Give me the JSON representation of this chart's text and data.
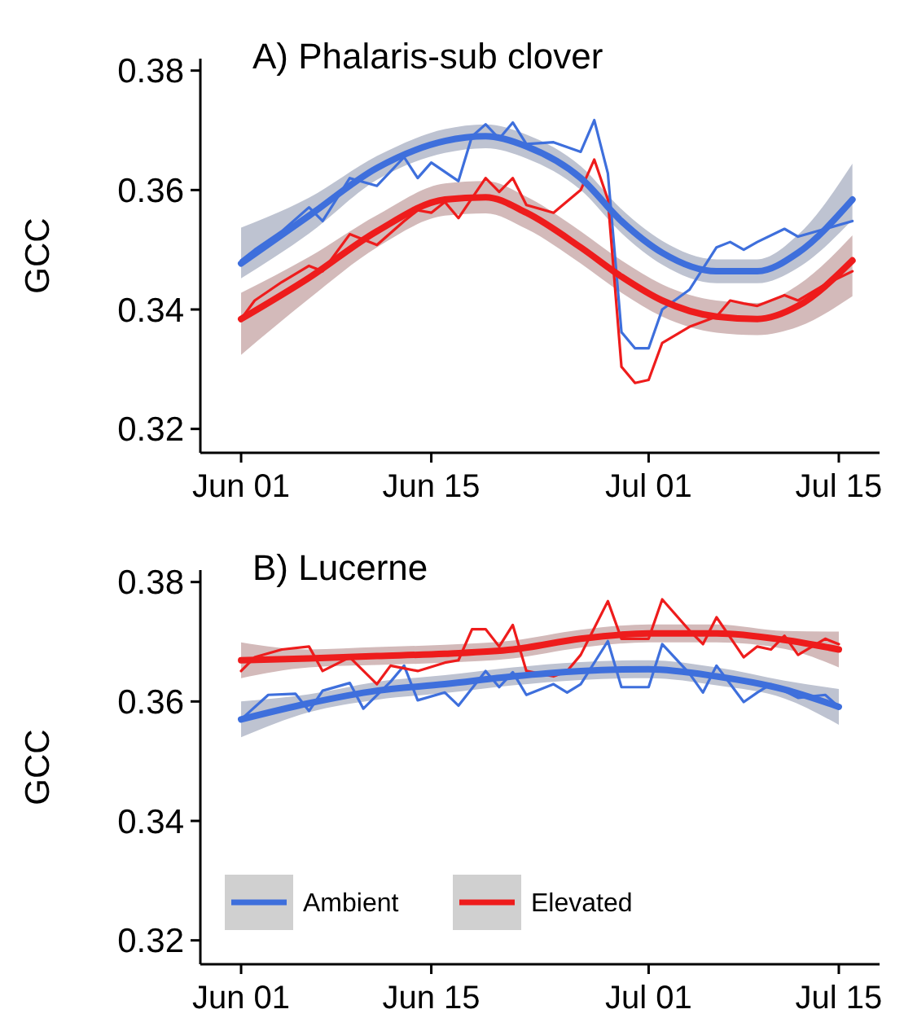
{
  "chart_data": [
    {
      "type": "line",
      "title": "A) Phalaris-sub clover",
      "ylabel": "GCC",
      "xlim": [
        "--05-29",
        "--07-18"
      ],
      "ylim": [
        0.316,
        0.382
      ],
      "yticks": [
        0.32,
        0.34,
        0.36,
        0.38
      ],
      "xticks": [
        {
          "value": "--06-01",
          "label": "Jun 01"
        },
        {
          "value": "--06-15",
          "label": "Jun 15"
        },
        {
          "value": "--07-01",
          "label": "Jul 01"
        },
        {
          "value": "--07-15",
          "label": "Jul 15"
        }
      ],
      "legend": false,
      "series": [
        {
          "color": "#3e6fdc",
          "x": [
            "--06-01",
            "--06-02",
            "--06-04",
            "--06-06",
            "--06-07",
            "--06-09",
            "--06-11",
            "--06-13",
            "--06-14",
            "--06-15",
            "--06-17",
            "--06-18",
            "--06-19",
            "--06-20",
            "--06-21",
            "--06-22",
            "--06-24",
            "--06-26",
            "--06-27",
            "--06-28",
            "--06-29",
            "--06-30",
            "--07-01",
            "--07-02",
            "--07-04",
            "--07-06",
            "--07-07",
            "--07-08",
            "--07-09",
            "--07-11",
            "--07-12",
            "--07-14",
            "--07-16"
          ],
          "values": [
            0.3482,
            0.35,
            0.3531,
            0.3571,
            0.3548,
            0.362,
            0.3607,
            0.3655,
            0.362,
            0.3646,
            0.3615,
            0.369,
            0.371,
            0.3686,
            0.3713,
            0.3677,
            0.368,
            0.3664,
            0.3717,
            0.3628,
            0.3362,
            0.3335,
            0.3335,
            0.34,
            0.3433,
            0.3504,
            0.3513,
            0.35,
            0.3513,
            0.3535,
            0.3522,
            0.3535,
            0.3548
          ]
        },
        {
          "color": "#ee1c1c",
          "x": [
            "--06-01",
            "--06-02",
            "--06-04",
            "--06-06",
            "--06-07",
            "--06-09",
            "--06-11",
            "--06-13",
            "--06-14",
            "--06-15",
            "--06-16",
            "--06-17",
            "--06-19",
            "--06-20",
            "--06-21",
            "--06-22",
            "--06-24",
            "--06-26",
            "--06-27",
            "--06-28",
            "--06-29",
            "--06-30",
            "--07-01",
            "--07-02",
            "--07-04",
            "--07-06",
            "--07-07",
            "--07-08",
            "--07-09",
            "--07-11",
            "--07-12",
            "--07-14",
            "--07-16"
          ],
          "values": [
            0.3384,
            0.3415,
            0.3446,
            0.3473,
            0.3464,
            0.3526,
            0.3508,
            0.3548,
            0.3566,
            0.3562,
            0.358,
            0.3553,
            0.362,
            0.3597,
            0.362,
            0.3575,
            0.3562,
            0.36,
            0.3651,
            0.3584,
            0.3304,
            0.3277,
            0.3282,
            0.3344,
            0.3371,
            0.3388,
            0.3415,
            0.341,
            0.3406,
            0.3424,
            0.3415,
            0.3442,
            0.3464
          ]
        },
        {
          "color": "#3e6fdc",
          "x": [
            "--06-01",
            "--06-06",
            "--06-11",
            "--06-16",
            "--06-19",
            "--06-22",
            "--06-26",
            "--06-29",
            "--07-02",
            "--07-06",
            "--07-09",
            "--07-12",
            "--07-16"
          ],
          "values": [
            0.3477,
            0.3557,
            0.3637,
            0.3682,
            0.369,
            0.3673,
            0.362,
            0.3548,
            0.3495,
            0.3464,
            0.3464,
            0.3495,
            0.3584
          ],
          "lower": [
            0.3452,
            0.3527,
            0.3617,
            0.3662,
            0.367,
            0.3653,
            0.36,
            0.3528,
            0.3475,
            0.3444,
            0.3444,
            0.347,
            0.355
          ],
          "upper": [
            0.3537,
            0.3587,
            0.3657,
            0.3702,
            0.371,
            0.3693,
            0.364,
            0.3568,
            0.3515,
            0.3484,
            0.3484,
            0.3525,
            0.3644
          ]
        },
        {
          "color": "#ee1c1c",
          "x": [
            "--06-01",
            "--06-06",
            "--06-11",
            "--06-16",
            "--06-19",
            "--06-22",
            "--06-26",
            "--06-29",
            "--07-02",
            "--07-06",
            "--07-09",
            "--07-12",
            "--07-16"
          ],
          "values": [
            0.3384,
            0.3453,
            0.3531,
            0.3584,
            0.3588,
            0.3562,
            0.3504,
            0.3455,
            0.3415,
            0.3388,
            0.3384,
            0.3406,
            0.3482
          ],
          "lower": [
            0.3324,
            0.3418,
            0.3504,
            0.3557,
            0.3561,
            0.3535,
            0.3477,
            0.3428,
            0.3388,
            0.3361,
            0.3357,
            0.3371,
            0.3422
          ],
          "upper": [
            0.3428,
            0.3488,
            0.3558,
            0.3611,
            0.3615,
            0.3589,
            0.3531,
            0.3482,
            0.3442,
            0.3415,
            0.3411,
            0.3441,
            0.3524
          ]
        }
      ]
    },
    {
      "type": "line",
      "title": "B) Lucerne",
      "ylabel": "GCC",
      "xlim": [
        "--05-29",
        "--07-18"
      ],
      "ylim": [
        0.316,
        0.382
      ],
      "yticks": [
        0.32,
        0.34,
        0.36,
        0.38
      ],
      "xticks": [
        {
          "value": "--06-01",
          "label": "Jun 01"
        },
        {
          "value": "--06-15",
          "label": "Jun 15"
        },
        {
          "value": "--07-01",
          "label": "Jul 01"
        },
        {
          "value": "--07-15",
          "label": "Jul 15"
        }
      ],
      "legend": "bottom left",
      "series": [
        {
          "color": "#3e6fdc",
          "x": [
            "--06-01",
            "--06-03",
            "--06-05",
            "--06-06",
            "--06-07",
            "--06-09",
            "--06-10",
            "--06-12",
            "--06-13",
            "--06-14",
            "--06-16",
            "--06-17",
            "--06-19",
            "--06-20",
            "--06-21",
            "--06-22",
            "--06-24",
            "--06-25",
            "--06-26",
            "--06-28",
            "--06-29",
            "--07-01",
            "--07-02",
            "--07-04",
            "--07-05",
            "--07-06",
            "--07-08",
            "--07-09",
            "--07-10",
            "--07-12",
            "--07-14",
            "--07-15"
          ],
          "values": [
            0.357,
            0.3611,
            0.3613,
            0.3584,
            0.3618,
            0.3631,
            0.3588,
            0.3633,
            0.366,
            0.3602,
            0.3615,
            0.3593,
            0.3651,
            0.3624,
            0.3649,
            0.3611,
            0.3629,
            0.3615,
            0.3629,
            0.3701,
            0.3624,
            0.3624,
            0.3696,
            0.3647,
            0.3615,
            0.366,
            0.3599,
            0.3615,
            0.3629,
            0.3606,
            0.3611,
            0.3591
          ]
        },
        {
          "color": "#ee1c1c",
          "x": [
            "--06-01",
            "--06-02",
            "--06-04",
            "--06-06",
            "--06-07",
            "--06-09",
            "--06-11",
            "--06-12",
            "--06-14",
            "--06-16",
            "--06-17",
            "--06-18",
            "--06-19",
            "--06-20",
            "--06-21",
            "--06-22",
            "--06-24",
            "--06-25",
            "--06-26",
            "--06-28",
            "--06-29",
            "--07-01",
            "--07-02",
            "--07-04",
            "--07-05",
            "--07-06",
            "--07-08",
            "--07-09",
            "--07-10",
            "--07-11",
            "--07-12",
            "--07-14",
            "--07-15"
          ],
          "values": [
            0.3651,
            0.3674,
            0.3687,
            0.3692,
            0.3651,
            0.3674,
            0.3629,
            0.366,
            0.3651,
            0.3665,
            0.3669,
            0.3721,
            0.3721,
            0.3692,
            0.3728,
            0.3651,
            0.3642,
            0.3651,
            0.3678,
            0.3768,
            0.3705,
            0.3705,
            0.3771,
            0.3719,
            0.3696,
            0.3741,
            0.3674,
            0.3692,
            0.3687,
            0.371,
            0.3678,
            0.3705,
            0.3696
          ]
        },
        {
          "name": "Ambient",
          "color": "#3e6fdc",
          "x": [
            "--06-01",
            "--06-06",
            "--06-11",
            "--06-16",
            "--06-21",
            "--06-26",
            "--07-01",
            "--07-06",
            "--07-11",
            "--07-15"
          ],
          "values": [
            0.357,
            0.3597,
            0.3618,
            0.3629,
            0.3642,
            0.3651,
            0.3654,
            0.3642,
            0.362,
            0.3591
          ],
          "lower": [
            0.354,
            0.3582,
            0.3603,
            0.3614,
            0.3627,
            0.3636,
            0.3639,
            0.3627,
            0.3605,
            0.3561
          ],
          "upper": [
            0.36,
            0.3612,
            0.3633,
            0.3644,
            0.3657,
            0.3666,
            0.3669,
            0.3657,
            0.3635,
            0.3621
          ]
        },
        {
          "name": "Elevated",
          "color": "#ee1c1c",
          "x": [
            "--06-01",
            "--06-06",
            "--06-11",
            "--06-16",
            "--06-21",
            "--06-26",
            "--07-01",
            "--07-06",
            "--07-11",
            "--07-15"
          ],
          "values": [
            0.3669,
            0.3672,
            0.3676,
            0.368,
            0.3687,
            0.3705,
            0.3714,
            0.3714,
            0.3703,
            0.3687
          ],
          "lower": [
            0.3639,
            0.3657,
            0.3661,
            0.3665,
            0.3672,
            0.369,
            0.3699,
            0.3699,
            0.3688,
            0.3657
          ],
          "upper": [
            0.3699,
            0.3687,
            0.3691,
            0.3695,
            0.3702,
            0.372,
            0.3729,
            0.3729,
            0.3718,
            0.3717
          ]
        }
      ]
    }
  ]
}
